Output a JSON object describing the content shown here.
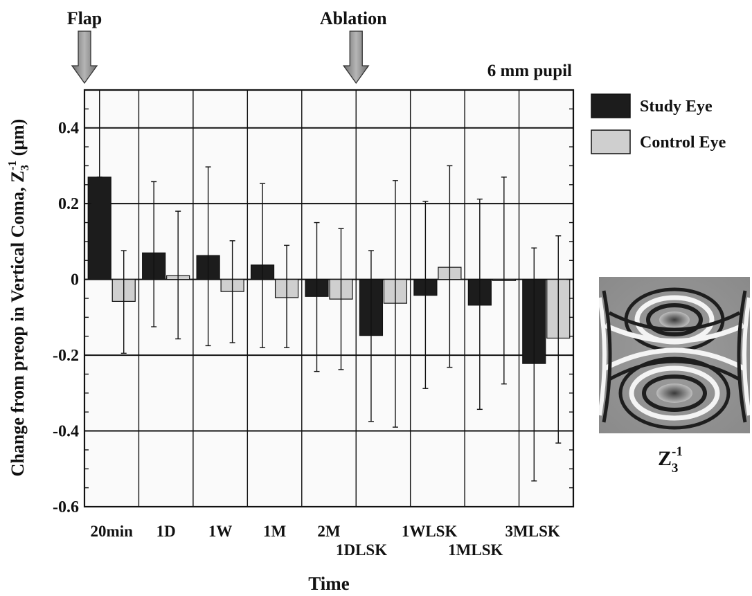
{
  "chart_data": {
    "type": "bar",
    "title": "",
    "subtitle": "6 mm pupil",
    "xlabel": "Time",
    "ylabel": "Change from preop  in Vertical Coma, Z",
    "ylabel_sub": "3",
    "ylabel_sup": "-1",
    "ylabel_unit": " (μm)",
    "ylim": [
      -0.6,
      0.5
    ],
    "yticks": [
      0.4,
      0.2,
      0,
      -0.2,
      -0.4,
      -0.6
    ],
    "ytick_labels": [
      "0.4",
      "0.2",
      "0",
      "-0.2",
      "-0.4",
      "-0.6"
    ],
    "grid": true,
    "legend_position": "right",
    "categories": [
      "20min",
      "1D",
      "1W",
      "1M",
      "2M",
      "1DLSK",
      "1WLSK",
      "1MLSK",
      "3MLSK"
    ],
    "series": [
      {
        "name": "Study Eye",
        "color": "#1c1c1c",
        "values": [
          0.27,
          0.07,
          0.063,
          0.038,
          -0.045,
          -0.148,
          -0.042,
          -0.068,
          -0.222
        ],
        "err_high": [
          0.5,
          0.258,
          0.297,
          0.253,
          0.15,
          0.076,
          0.206,
          0.212,
          0.083
        ],
        "err_low": [
          0.27,
          -0.125,
          -0.175,
          -0.18,
          -0.243,
          -0.375,
          -0.288,
          -0.343,
          -0.532
        ]
      },
      {
        "name": "Control Eye",
        "color": "#cfcfcf",
        "values": [
          -0.058,
          0.01,
          -0.032,
          -0.048,
          -0.052,
          -0.063,
          0.032,
          -0.003,
          -0.155
        ],
        "err_high": [
          0.076,
          0.18,
          0.102,
          0.09,
          0.134,
          0.261,
          0.3,
          0.27,
          0.115
        ],
        "err_low": [
          -0.195,
          -0.157,
          -0.167,
          -0.18,
          -0.238,
          -0.39,
          -0.232,
          -0.276,
          -0.432
        ]
      }
    ],
    "annotations": [
      {
        "text": "Flap",
        "at_category_index": 0
      },
      {
        "text": "Ablation",
        "at_category_index": 5
      }
    ],
    "inset": {
      "icon": "zernike-coma-pattern",
      "label_base": "Z",
      "label_sup": "-1",
      "label_sub": "3"
    }
  }
}
